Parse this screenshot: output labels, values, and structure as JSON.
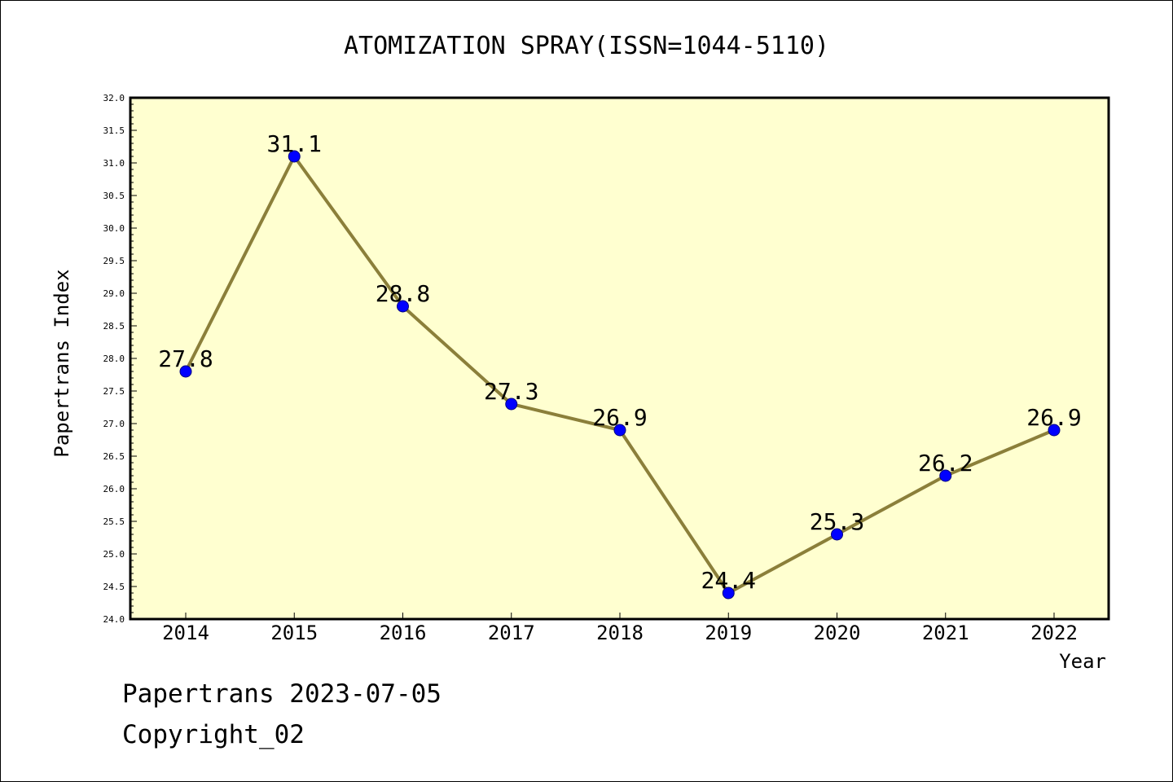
{
  "chart_data": {
    "type": "line",
    "title": "ATOMIZATION SPRAY(ISSN=1044-5110)",
    "xlabel": "Year",
    "ylabel": "Papertrans Index",
    "categories": [
      "2014",
      "2015",
      "2016",
      "2017",
      "2018",
      "2019",
      "2020",
      "2021",
      "2022"
    ],
    "series": [
      {
        "values": [
          27.8,
          31.1,
          28.8,
          27.3,
          26.9,
          24.4,
          25.3,
          26.2,
          26.9
        ],
        "data_labels": [
          "27.8",
          "31.1",
          "28.8",
          "27.3",
          "26.9",
          "24.4",
          "25.3",
          "26.2",
          "26.9"
        ]
      }
    ],
    "ylim": [
      24.0,
      32.0
    ],
    "yticks": [
      "24.0",
      "24.5",
      "25.0",
      "25.5",
      "26.0",
      "26.5",
      "27.0",
      "27.5",
      "28.0",
      "28.5",
      "29.0",
      "29.5",
      "30.0",
      "30.5",
      "31.0",
      "31.5",
      "32.0"
    ],
    "grid": false,
    "colors": {
      "plot_background": "#ffffd0",
      "line": "#8b7f3a",
      "marker": "#0000ff",
      "marker_edge": "#000080"
    }
  },
  "footer": {
    "date_line": "Papertrans 2023-07-05",
    "copyright": "Copyright_02"
  }
}
